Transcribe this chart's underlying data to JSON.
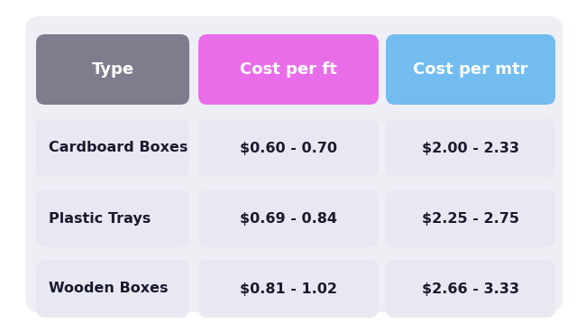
{
  "background_color": "#eeeef5",
  "outer_bg": "#ffffff",
  "headers": [
    "Type",
    "Cost per ft",
    "Cost per mtr"
  ],
  "header_colors": [
    "#7d7d8e",
    "#e96de9",
    "#72bcf0"
  ],
  "header_text_color": "#ffffff",
  "rows": [
    [
      "Cardboard Boxes",
      "$0.60 - 0.70",
      "$2.00 - 2.33"
    ],
    [
      "Plastic Trays",
      "$0.69 - 0.84",
      "$2.25 - 2.75"
    ],
    [
      "Wooden Boxes",
      "$0.81 - 1.02",
      "$2.66 - 3.33"
    ]
  ],
  "row_bg_color": "#e8e8f2",
  "row_text_color": "#1a1a2e",
  "figsize": [
    6.5,
    3.69
  ],
  "dpi": 100
}
